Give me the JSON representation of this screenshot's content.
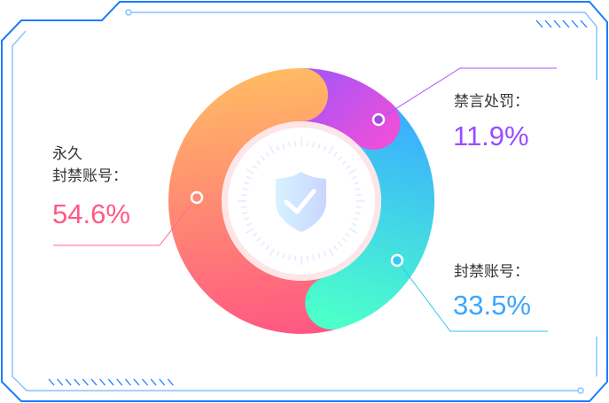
{
  "chart_data": {
    "type": "pie",
    "variant": "donut",
    "slices": [
      {
        "label": "禁言处罚：",
        "value": 11.9,
        "display": "11.9%",
        "colors": [
          "#a855f7",
          "#ef4fd8"
        ]
      },
      {
        "label": "封禁账号：",
        "value": 33.5,
        "display": "33.5%",
        "colors": [
          "#3aaeff",
          "#4bffcb"
        ]
      },
      {
        "label": "永久\n封禁账号：",
        "label_line1": "永久",
        "label_line2": "封禁账号：",
        "value": 54.6,
        "display": "54.6%",
        "colors": [
          "#ffbb63",
          "#ff5883"
        ]
      }
    ],
    "label_colors": {
      "ban_speech": "#9b4dff",
      "ban_account": "#3aa6ff",
      "permanent": "#ff5a86"
    },
    "center_icon": "shield-check-icon"
  },
  "frame_color": "#1a7cff"
}
